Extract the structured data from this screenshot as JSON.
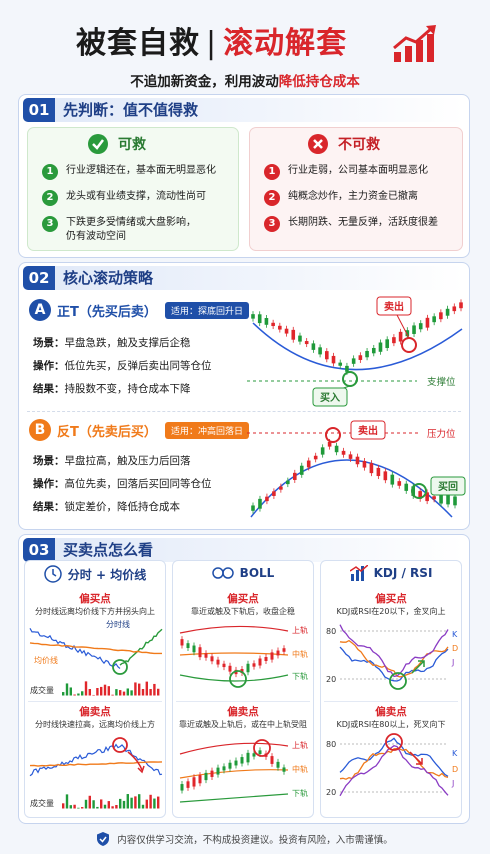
{
  "header": {
    "title_left": "被套自救",
    "divider": "|",
    "title_right": "滚动解套",
    "subtitle": "不追加新资金，利用波动",
    "subtitle_highlight": "降低持仓成本"
  },
  "section1": {
    "number": "01",
    "title": "先判断：值不值得救",
    "can": {
      "title": "可救",
      "items": [
        {
          "num": "1",
          "text": "行业逻辑还在，基本面无明显恶化"
        },
        {
          "num": "2",
          "text": "龙头或有业绩支撑，流动性尚可"
        },
        {
          "num": "3",
          "text": "下跌更多受情绪或大盘影响，仍有波动空间"
        }
      ]
    },
    "cannot": {
      "title": "不可救",
      "items": [
        {
          "num": "1",
          "text": "行业走弱，公司基本面明显恶化"
        },
        {
          "num": "2",
          "text": "纯概念炒作，主力资金已撤离"
        },
        {
          "num": "3",
          "text": "长期阴跌、无量反弹，活跃度很差"
        }
      ]
    }
  },
  "section2": {
    "number": "02",
    "title": "核心滚动策略",
    "strategies": [
      {
        "letter": "A",
        "title": "正T（先买后卖）",
        "tag": "适用：探底回升日",
        "rows": [
          {
            "label": "场景：",
            "text": "早盘急跌，触及支撑后企稳"
          },
          {
            "label": "操作：",
            "text": "低位先买，反弹后卖出同等仓位"
          },
          {
            "label": "结果：",
            "text": "持股数不变，持仓成本下降"
          }
        ],
        "chart_labels": {
          "sell": "卖出",
          "buy": "买入",
          "level": "支撑位"
        }
      },
      {
        "letter": "B",
        "title": "反T（先卖后买）",
        "tag": "适用：冲高回落日",
        "rows": [
          {
            "label": "场景：",
            "text": "早盘拉高，触及压力后回落"
          },
          {
            "label": "操作：",
            "text": "高位先卖，回落后买回同等仓位"
          },
          {
            "label": "结果：",
            "text": "锁定差价，降低持仓成本"
          }
        ],
        "chart_labels": {
          "sell": "卖出",
          "buy": "买回",
          "level": "压力位"
        }
      }
    ]
  },
  "section3": {
    "number": "03",
    "title": "买卖点怎么看",
    "columns": [
      {
        "title": "分时 + 均价线",
        "buy": {
          "label": "偏买点",
          "desc": "分时线远离均价线下方并拐头向上",
          "chart_labels": [
            "分时线",
            "均价线",
            "成交量"
          ]
        },
        "sell": {
          "label": "偏卖点",
          "desc": "分时线快速拉高，远离均价线上方",
          "chart_labels": [
            "成交量"
          ]
        }
      },
      {
        "title": "BOLL",
        "buy": {
          "label": "偏买点",
          "desc": "靠近或触及下轨后，收盘企稳",
          "chart_labels": [
            "上轨",
            "中轨",
            "下轨"
          ]
        },
        "sell": {
          "label": "偏卖点",
          "desc": "靠近或触及上轨后，或在中上轨受阻",
          "chart_labels": [
            "上轨",
            "中轨",
            "下轨"
          ]
        }
      },
      {
        "title": "KDJ / RSI",
        "buy": {
          "label": "偏买点",
          "desc": "KDJ或RSI在20以下，金叉向上",
          "chart_labels": [
            "80",
            "20",
            "K",
            "D",
            "J"
          ]
        },
        "sell": {
          "label": "偏卖点",
          "desc": "KDJ或RSI在80以上，死叉向下",
          "chart_labels": [
            "80",
            "20",
            "K",
            "D",
            "J"
          ]
        }
      }
    ]
  },
  "footer": "内容仅供学习交流，不构成投资建议。投资有风险，入市需谨慎。"
}
